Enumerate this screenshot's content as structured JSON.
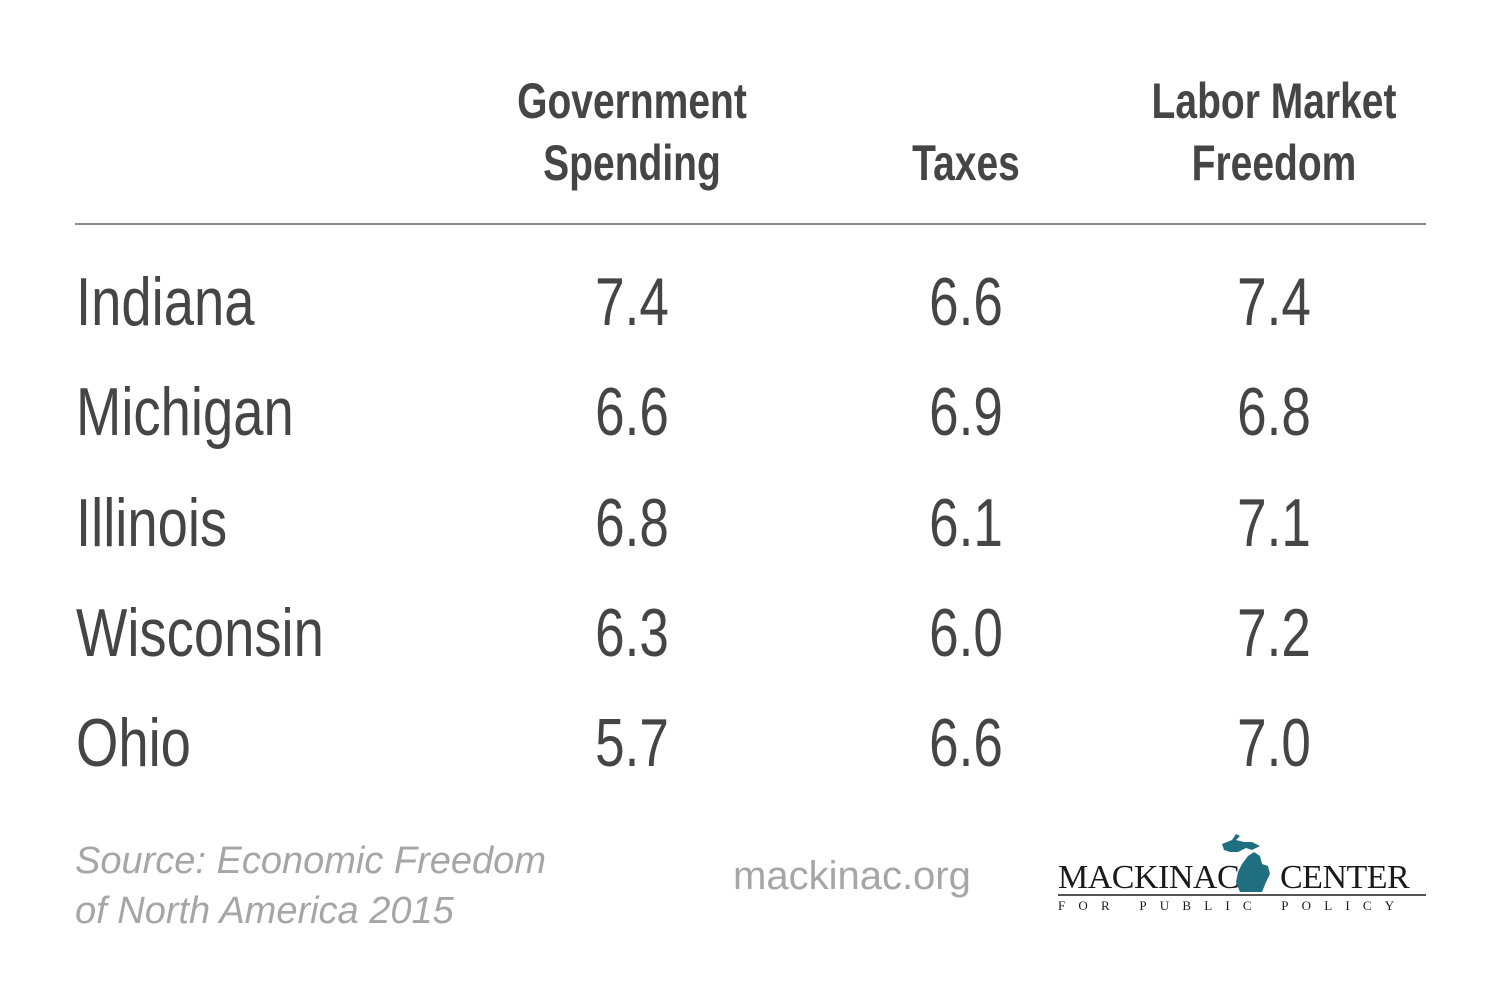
{
  "chart_data": {
    "type": "table",
    "title": "",
    "columns": [
      "Government Spending",
      "Taxes",
      "Labor Market Freedom"
    ],
    "column_headers": [
      {
        "line1": "Government",
        "line2": "Spending"
      },
      {
        "line1": "",
        "line2": "Taxes"
      },
      {
        "line1": "Labor Market",
        "line2": "Freedom"
      }
    ],
    "rows": [
      {
        "state": "Indiana",
        "values": [
          "7.4",
          "6.6",
          "7.4"
        ]
      },
      {
        "state": "Michigan",
        "values": [
          "6.6",
          "6.9",
          "6.8"
        ]
      },
      {
        "state": "Illinois",
        "values": [
          "6.8",
          "6.1",
          "7.1"
        ]
      },
      {
        "state": "Wisconsin",
        "values": [
          "6.3",
          "6.0",
          "7.2"
        ]
      },
      {
        "state": "Ohio",
        "values": [
          "5.7",
          "6.6",
          "7.0"
        ]
      }
    ]
  },
  "footer": {
    "source_line1": "Source: Economic Freedom",
    "source_line2": "of North America 2015",
    "website": "mackinac.org",
    "logo": {
      "left_text": "MACKINAC",
      "right_text": "CENTER",
      "subtitle": "FOR PUBLIC POLICY",
      "map_icon": "michigan-map-icon",
      "brand_color": "#1f6f80"
    }
  },
  "colors": {
    "text": "#454545",
    "muted": "#a6a6a6",
    "rule": "#8a8a8a"
  }
}
